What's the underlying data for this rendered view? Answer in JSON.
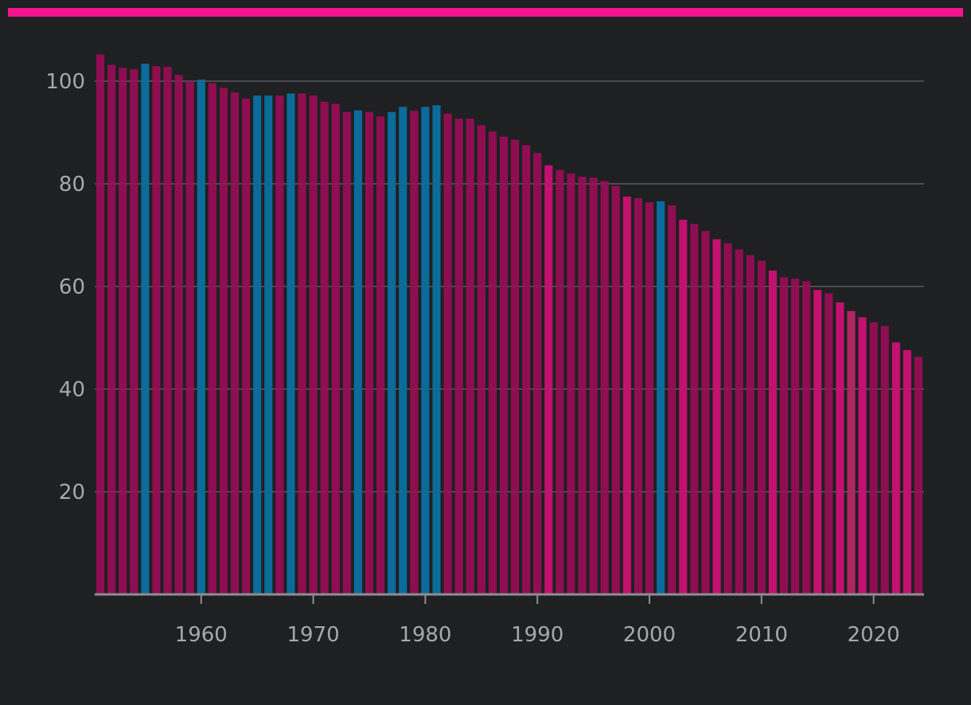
{
  "colors": {
    "background": "#1f2022",
    "accent": "#f4148c",
    "bar_dark_magenta": "#8f0e52",
    "bar_bright_magenta": "#c4106f",
    "bar_blue": "#0b6b9a",
    "bar_muted_rose": "#b0255f",
    "gridline": "#5a5b5e",
    "axis": "#8d8e91",
    "tick_text": "#a7a8ab"
  },
  "chart_data": {
    "type": "bar",
    "title": "",
    "xlabel": "",
    "ylabel": "",
    "ylim": [
      0,
      107
    ],
    "xlim": [
      1950.5,
      2024.5
    ],
    "y_ticks": [
      20,
      40,
      60,
      80,
      100
    ],
    "x_ticks": [
      1960,
      1970,
      1980,
      1990,
      2000,
      2010,
      2020
    ],
    "grid": "horizontal",
    "legend": "none",
    "x": [
      1951,
      1952,
      1953,
      1954,
      1955,
      1956,
      1957,
      1958,
      1959,
      1960,
      1961,
      1962,
      1963,
      1964,
      1965,
      1966,
      1967,
      1968,
      1969,
      1970,
      1971,
      1972,
      1973,
      1974,
      1975,
      1976,
      1977,
      1978,
      1979,
      1980,
      1981,
      1982,
      1983,
      1984,
      1985,
      1986,
      1987,
      1988,
      1989,
      1990,
      1991,
      1992,
      1993,
      1994,
      1995,
      1996,
      1997,
      1998,
      1999,
      2000,
      2001,
      2002,
      2003,
      2004,
      2005,
      2006,
      2007,
      2008,
      2009,
      2010,
      2011,
      2012,
      2013,
      2014,
      2015,
      2016,
      2017,
      2018,
      2019,
      2020,
      2021,
      2022,
      2023,
      2024
    ],
    "values": [
      105.2,
      103.2,
      102.6,
      102.3,
      103.4,
      102.9,
      102.8,
      101.2,
      100.0,
      100.3,
      99.6,
      98.7,
      97.8,
      96.6,
      97.2,
      97.2,
      97.2,
      97.6,
      97.6,
      97.2,
      96.0,
      95.6,
      94.0,
      94.3,
      94.0,
      93.1,
      94.0,
      95.0,
      94.2,
      95.0,
      95.3,
      93.7,
      92.7,
      92.7,
      91.4,
      90.2,
      89.2,
      88.6,
      87.5,
      86.0,
      83.6,
      82.7,
      82.0,
      81.4,
      81.2,
      80.5,
      79.6,
      77.5,
      77.2,
      76.4,
      76.6,
      75.8,
      73.0,
      72.2,
      70.8,
      69.2,
      68.4,
      67.2,
      66.1,
      65.0,
      63.1,
      61.8,
      61.5,
      61.0,
      59.3,
      58.7,
      56.9,
      55.2,
      54.0,
      53.0,
      52.3,
      49.1,
      47.6,
      46.3
    ],
    "bar_colors": [
      "#8f0e52",
      "#8f0e52",
      "#8f0e52",
      "#8f0e52",
      "#0b6b9a",
      "#8f0e52",
      "#8f0e52",
      "#8f0e52",
      "#8f0e52",
      "#0b6b9a",
      "#8f0e52",
      "#8f0e52",
      "#8f0e52",
      "#8f0e52",
      "#0b6b9a",
      "#0b6b9a",
      "#8f0e52",
      "#0b6b9a",
      "#8f0e52",
      "#8f0e52",
      "#8f0e52",
      "#8f0e52",
      "#8f0e52",
      "#0b6b9a",
      "#8f0e52",
      "#8f0e52",
      "#0b6b9a",
      "#0b6b9a",
      "#8f0e52",
      "#0b6b9a",
      "#0b6b9a",
      "#8f0e52",
      "#8f0e52",
      "#8f0e52",
      "#8f0e52",
      "#8f0e52",
      "#8f0e52",
      "#8f0e52",
      "#8f0e52",
      "#8f0e52",
      "#c4106f",
      "#8f0e52",
      "#8f0e52",
      "#8f0e52",
      "#8f0e52",
      "#8f0e52",
      "#8f0e52",
      "#c4106f",
      "#8f0e52",
      "#8f0e52",
      "#0b6b9a",
      "#8f0e52",
      "#c4106f",
      "#8f0e52",
      "#8f0e52",
      "#c4106f",
      "#8f0e52",
      "#8f0e52",
      "#8f0e52",
      "#8f0e52",
      "#c4106f",
      "#8f0e52",
      "#8f0e52",
      "#8f0e52",
      "#c4106f",
      "#8f0e52",
      "#c4106f",
      "#b0255f",
      "#c4106f",
      "#8f0e52",
      "#8f0e52",
      "#c4106f",
      "#c4106f",
      "#8f0e52"
    ]
  }
}
